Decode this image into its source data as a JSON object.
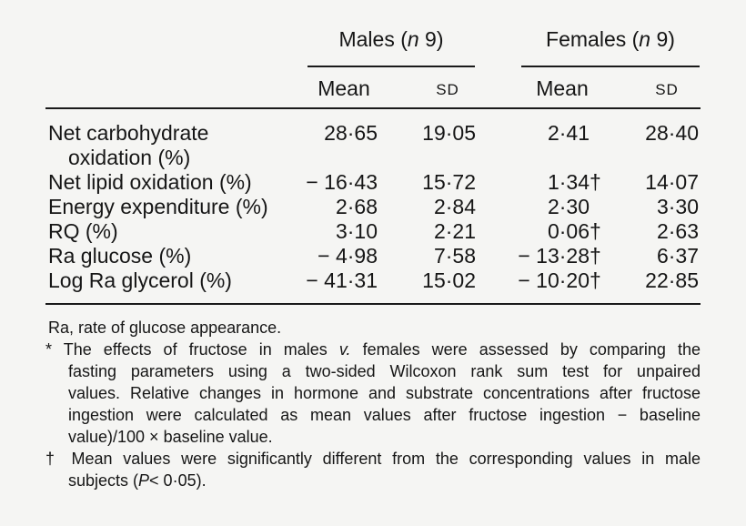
{
  "table": {
    "groups": [
      {
        "pre": "Males (",
        "n": "n",
        "post": " 9)"
      },
      {
        "pre": "Females (",
        "n": "n",
        "post": " 9)"
      }
    ],
    "col_headers": {
      "mean": "Mean",
      "sd": "SD"
    },
    "rows": [
      {
        "label": "Net carbohydrate",
        "label2": "oxidation (%)",
        "males_mean": "28·65",
        "males_sd": "19·05",
        "females_mean": "2·41",
        "females_dagger": "",
        "females_sd": "28·40"
      },
      {
        "label": "Net lipid oxidation (%)",
        "males_mean": "− 16·43",
        "males_sd": "15·72",
        "females_mean": "1·34",
        "females_dagger": "†",
        "females_sd": "14·07"
      },
      {
        "label": "Energy expenditure (%)",
        "males_mean": "2·68",
        "males_sd": "2·84",
        "females_mean": "2·30",
        "females_dagger": "",
        "females_sd": "3·30"
      },
      {
        "label": "RQ (%)",
        "males_mean": "3·10",
        "males_sd": "2·21",
        "females_mean": "0·06",
        "females_dagger": "†",
        "females_sd": "2·63"
      },
      {
        "label": "Ra glucose (%)",
        "males_mean": "− 4·98",
        "males_sd": "7·58",
        "females_mean": "− 13·28",
        "females_dagger": "†",
        "females_sd": "6·37"
      },
      {
        "label": "Log Ra glycerol (%)",
        "males_mean": "− 41·31",
        "males_sd": "15·02",
        "females_mean": "− 10·20",
        "females_dagger": "†",
        "females_sd": "22·85"
      }
    ]
  },
  "footnotes": {
    "ra": "Ra, rate of glucose appearance.",
    "star_lines": [
      {
        "pre": "* The effects of fructose in males ",
        "it": "v.",
        "post": " females were assessed by comparing the"
      },
      {
        "text": "fasting parameters using a two-sided Wilcoxon rank sum test for unpaired"
      },
      {
        "text": "values. Relative changes in hormone and substrate concentrations after fructose"
      },
      {
        "text": "ingestion were calculated as mean values after fructose ingestion − baseline"
      },
      {
        "text": "value)/100 × baseline value."
      }
    ],
    "dagger_lines": [
      {
        "text": "† Mean values were significantly different from the corresponding values in male"
      },
      {
        "pre": "subjects (",
        "it": "P",
        "post": "< 0·05)."
      }
    ]
  },
  "colors": {
    "background": "#f5f5f3",
    "text": "#161616",
    "rule": "#1a1a1a"
  }
}
